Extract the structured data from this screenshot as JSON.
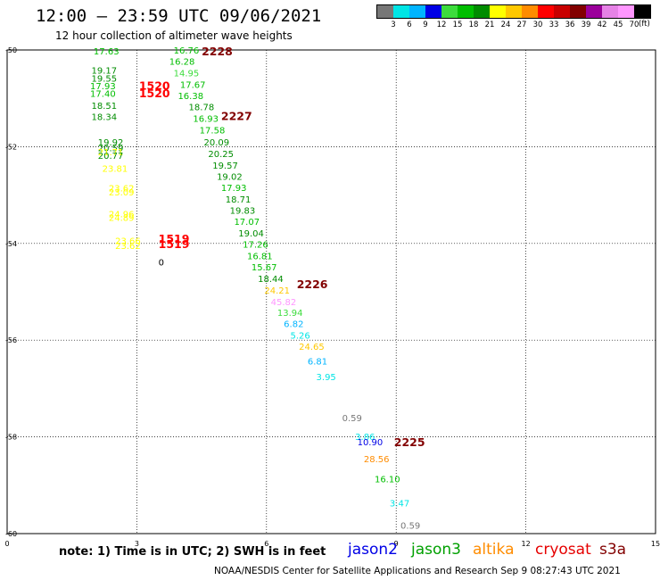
{
  "header": {
    "title": "12:00 – 23:59 UTC 09/06/2021",
    "subtitle": "12 hour collection of altimeter wave heights"
  },
  "colorbar": {
    "colors": [
      "#777777",
      "#00e5e5",
      "#00b4ff",
      "#0000e6",
      "#3cdc3c",
      "#00be00",
      "#008c00",
      "#ffff00",
      "#ffc800",
      "#ff8c00",
      "#ff0000",
      "#c80000",
      "#820000",
      "#9b009b",
      "#e682e6",
      "#ff96ff",
      "#000000"
    ],
    "labels": [
      "3",
      "6",
      "9",
      "12",
      "15",
      "18",
      "21",
      "24",
      "27",
      "30",
      "33",
      "36",
      "39",
      "42",
      "45",
      "70"
    ],
    "unit": "(ft)"
  },
  "chart_data": {
    "type": "scatter",
    "title": "12 hour collection of altimeter wave heights",
    "xlim": [
      0,
      15
    ],
    "ylim": [
      -60,
      -50
    ],
    "x_ticks": [
      "0",
      "3",
      "6",
      "9",
      "12",
      "15"
    ],
    "y_ticks": [
      "-50",
      "-52",
      "-54",
      "-56",
      "-58",
      "-60"
    ],
    "grid": true,
    "points": [
      {
        "x": 2.0,
        "y": -50.04,
        "label": "17.63",
        "color": "#00be00"
      },
      {
        "x": 1.95,
        "y": -50.43,
        "label": "19.17",
        "color": "#008c00"
      },
      {
        "x": 1.95,
        "y": -50.6,
        "label": "19.55",
        "color": "#008c00"
      },
      {
        "x": 1.92,
        "y": -50.76,
        "label": "17.93",
        "color": "#00be00"
      },
      {
        "x": 1.92,
        "y": -50.91,
        "label": "17.40",
        "color": "#00be00"
      },
      {
        "x": 1.95,
        "y": -51.16,
        "label": "18.51",
        "color": "#008c00"
      },
      {
        "x": 1.95,
        "y": -51.39,
        "label": "18.34",
        "color": "#008c00"
      },
      {
        "x": 2.1,
        "y": -51.92,
        "label": "19.92",
        "color": "#008c00"
      },
      {
        "x": 2.1,
        "y": -52.04,
        "label": "20.59",
        "color": "#008c00"
      },
      {
        "x": 2.1,
        "y": -52.12,
        "label": "21.71",
        "color": "#ffff00"
      },
      {
        "x": 2.1,
        "y": -52.2,
        "label": "20.77",
        "color": "#008c00"
      },
      {
        "x": 2.2,
        "y": -52.46,
        "label": "23.81",
        "color": "#ffff00"
      },
      {
        "x": 2.35,
        "y": -52.87,
        "label": "23.62",
        "color": "#ffff00"
      },
      {
        "x": 2.35,
        "y": -52.95,
        "label": "23.09",
        "color": "#ffff00"
      },
      {
        "x": 2.35,
        "y": -53.4,
        "label": "24.96",
        "color": "#ffff00"
      },
      {
        "x": 2.35,
        "y": -53.48,
        "label": "24.89",
        "color": "#ffff00"
      },
      {
        "x": 2.5,
        "y": -53.96,
        "label": "23.66",
        "color": "#ffff00"
      },
      {
        "x": 2.5,
        "y": -54.06,
        "label": "23.62",
        "color": "#ffff00"
      },
      {
        "x": 3.85,
        "y": -50.02,
        "label": "16.76",
        "color": "#00be00"
      },
      {
        "x": 3.75,
        "y": -50.25,
        "label": "16.28",
        "color": "#00be00"
      },
      {
        "x": 3.85,
        "y": -50.49,
        "label": "14.95",
        "color": "#3cdc3c"
      },
      {
        "x": 4.0,
        "y": -50.73,
        "label": "17.67",
        "color": "#00be00"
      },
      {
        "x": 3.95,
        "y": -50.96,
        "label": "16.38",
        "color": "#00be00"
      },
      {
        "x": 4.2,
        "y": -51.19,
        "label": "18.78",
        "color": "#008c00"
      },
      {
        "x": 4.3,
        "y": -51.43,
        "label": "16.93",
        "color": "#00be00"
      },
      {
        "x": 4.45,
        "y": -51.67,
        "label": "17.58",
        "color": "#00be00"
      },
      {
        "x": 4.55,
        "y": -51.92,
        "label": "20.09",
        "color": "#008c00"
      },
      {
        "x": 4.65,
        "y": -52.16,
        "label": "20.25",
        "color": "#008c00"
      },
      {
        "x": 4.75,
        "y": -52.4,
        "label": "19.57",
        "color": "#008c00"
      },
      {
        "x": 4.85,
        "y": -52.63,
        "label": "19.02",
        "color": "#008c00"
      },
      {
        "x": 4.95,
        "y": -52.86,
        "label": "17.93",
        "color": "#00be00"
      },
      {
        "x": 5.05,
        "y": -53.1,
        "label": "18.71",
        "color": "#008c00"
      },
      {
        "x": 5.15,
        "y": -53.33,
        "label": "19.83",
        "color": "#008c00"
      },
      {
        "x": 5.25,
        "y": -53.56,
        "label": "17.07",
        "color": "#00be00"
      },
      {
        "x": 5.35,
        "y": -53.8,
        "label": "19.04",
        "color": "#008c00"
      },
      {
        "x": 5.45,
        "y": -54.03,
        "label": "17.26",
        "color": "#00be00"
      },
      {
        "x": 5.55,
        "y": -54.27,
        "label": "16.81",
        "color": "#00be00"
      },
      {
        "x": 5.65,
        "y": -54.5,
        "label": "15.67",
        "color": "#00be00"
      },
      {
        "x": 5.8,
        "y": -54.74,
        "label": "18.44",
        "color": "#008c00"
      },
      {
        "x": 5.95,
        "y": -54.98,
        "label": "24.21",
        "color": "#ffc800"
      },
      {
        "x": 6.1,
        "y": -55.22,
        "label": "45.82",
        "color": "#ff96ff"
      },
      {
        "x": 6.25,
        "y": -55.44,
        "label": "13.94",
        "color": "#3cdc3c"
      },
      {
        "x": 6.4,
        "y": -55.67,
        "label": "6.82",
        "color": "#00b4ff"
      },
      {
        "x": 6.55,
        "y": -55.91,
        "label": "5.26",
        "color": "#00e5e5"
      },
      {
        "x": 6.75,
        "y": -56.14,
        "label": "24.65",
        "color": "#ffc800"
      },
      {
        "x": 6.95,
        "y": -56.45,
        "label": "6.81",
        "color": "#00b4ff"
      },
      {
        "x": 7.15,
        "y": -56.77,
        "label": "3.95",
        "color": "#00e5e5"
      },
      {
        "x": 7.75,
        "y": -57.62,
        "label": "0.59",
        "color": "#777777"
      },
      {
        "x": 8.05,
        "y": -58.01,
        "label": "3.86",
        "color": "#00e5e5"
      },
      {
        "x": 8.1,
        "y": -58.12,
        "label": "10.90",
        "color": "#0000e6"
      },
      {
        "x": 8.25,
        "y": -58.47,
        "label": "28.56",
        "color": "#ff8c00"
      },
      {
        "x": 8.5,
        "y": -58.88,
        "label": "16.10",
        "color": "#00be00"
      },
      {
        "x": 8.85,
        "y": -59.38,
        "label": "3.47",
        "color": "#00e5e5"
      },
      {
        "x": 9.1,
        "y": -59.84,
        "label": "0.59",
        "color": "#777777"
      },
      {
        "x": 3.5,
        "y": -54.4,
        "label": "0",
        "color": "#000000"
      }
    ],
    "time_labels": [
      {
        "x": 4.5,
        "y": -50.05,
        "label": "2228",
        "color": "#820000"
      },
      {
        "x": 3.05,
        "y": -50.76,
        "label": "1520",
        "color": "#ff0000"
      },
      {
        "x": 3.05,
        "y": -50.91,
        "label": "1520",
        "color": "#ff0000"
      },
      {
        "x": 4.95,
        "y": -51.38,
        "label": "2227",
        "color": "#820000"
      },
      {
        "x": 3.5,
        "y": -53.92,
        "label": "1519",
        "color": "#ff0000"
      },
      {
        "x": 3.5,
        "y": -54.03,
        "label": "1519",
        "color": "#ff0000"
      },
      {
        "x": 6.7,
        "y": -54.86,
        "label": "2226",
        "color": "#820000"
      },
      {
        "x": 8.95,
        "y": -58.13,
        "label": "2225",
        "color": "#820000"
      }
    ]
  },
  "footer": {
    "note": "note:  1) Time is in UTC; 2) SWH is in feet",
    "satellites": [
      {
        "name": "jason2",
        "color": "#0000e6"
      },
      {
        "name": "jason3",
        "color": "#00a000"
      },
      {
        "name": "altika",
        "color": "#ff8c00"
      },
      {
        "name": "cryosat",
        "color": "#e60000"
      },
      {
        "name": "s3a",
        "color": "#820000"
      }
    ],
    "credit": "NOAA/NESDIS Center for Satellite Applications and Research    Sep  9 08:27:43 UTC 2021"
  }
}
